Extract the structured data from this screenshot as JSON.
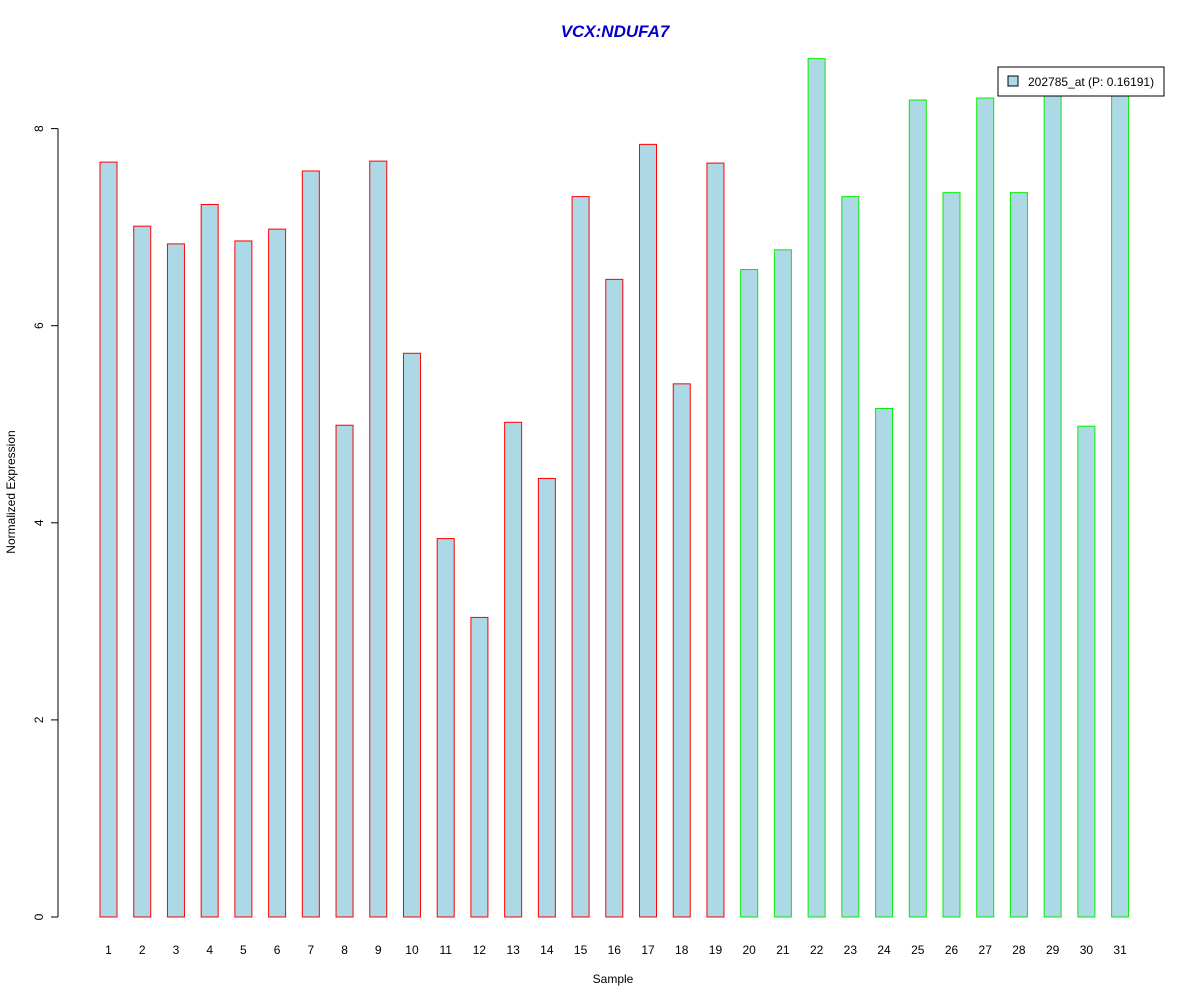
{
  "chart_data": {
    "type": "bar",
    "title": "VCX:NDUFA7",
    "xlabel": "Sample",
    "ylabel": "Normalized Expression",
    "categories": [
      "1",
      "2",
      "3",
      "4",
      "5",
      "6",
      "7",
      "8",
      "9",
      "10",
      "11",
      "12",
      "13",
      "14",
      "15",
      "16",
      "17",
      "18",
      "19",
      "20",
      "21",
      "22",
      "23",
      "24",
      "25",
      "26",
      "27",
      "28",
      "29",
      "30",
      "31"
    ],
    "series": [
      {
        "name": "202785_at (P: 0.16191)",
        "values": [
          7.66,
          7.01,
          6.83,
          7.23,
          6.86,
          6.98,
          7.57,
          4.99,
          7.67,
          5.72,
          3.84,
          3.04,
          5.02,
          4.45,
          7.31,
          6.47,
          7.84,
          5.41,
          7.65,
          6.57,
          6.77,
          8.71,
          7.31,
          5.16,
          8.29,
          7.35,
          8.31,
          7.35,
          8.35,
          4.98,
          8.35
        ]
      }
    ],
    "group_border_colors": [
      "#ff0000",
      "#ff0000",
      "#ff0000",
      "#ff0000",
      "#ff0000",
      "#ff0000",
      "#ff0000",
      "#ff0000",
      "#ff0000",
      "#ff0000",
      "#ff0000",
      "#ff0000",
      "#ff0000",
      "#ff0000",
      "#ff0000",
      "#ff0000",
      "#ff0000",
      "#ff0000",
      "#ff0000",
      "#00ee00",
      "#00ee00",
      "#00ee00",
      "#00ee00",
      "#00ee00",
      "#00ee00",
      "#00ee00",
      "#00ee00",
      "#00ee00",
      "#00ee00",
      "#00ee00",
      "#00ee00"
    ],
    "bar_fill": "#add8e6",
    "title_color": "#0000cc",
    "yticks": [
      0,
      2,
      4,
      6,
      8
    ],
    "ylim": [
      0,
      8.71
    ],
    "grid": false,
    "legend_position": "top-right"
  }
}
